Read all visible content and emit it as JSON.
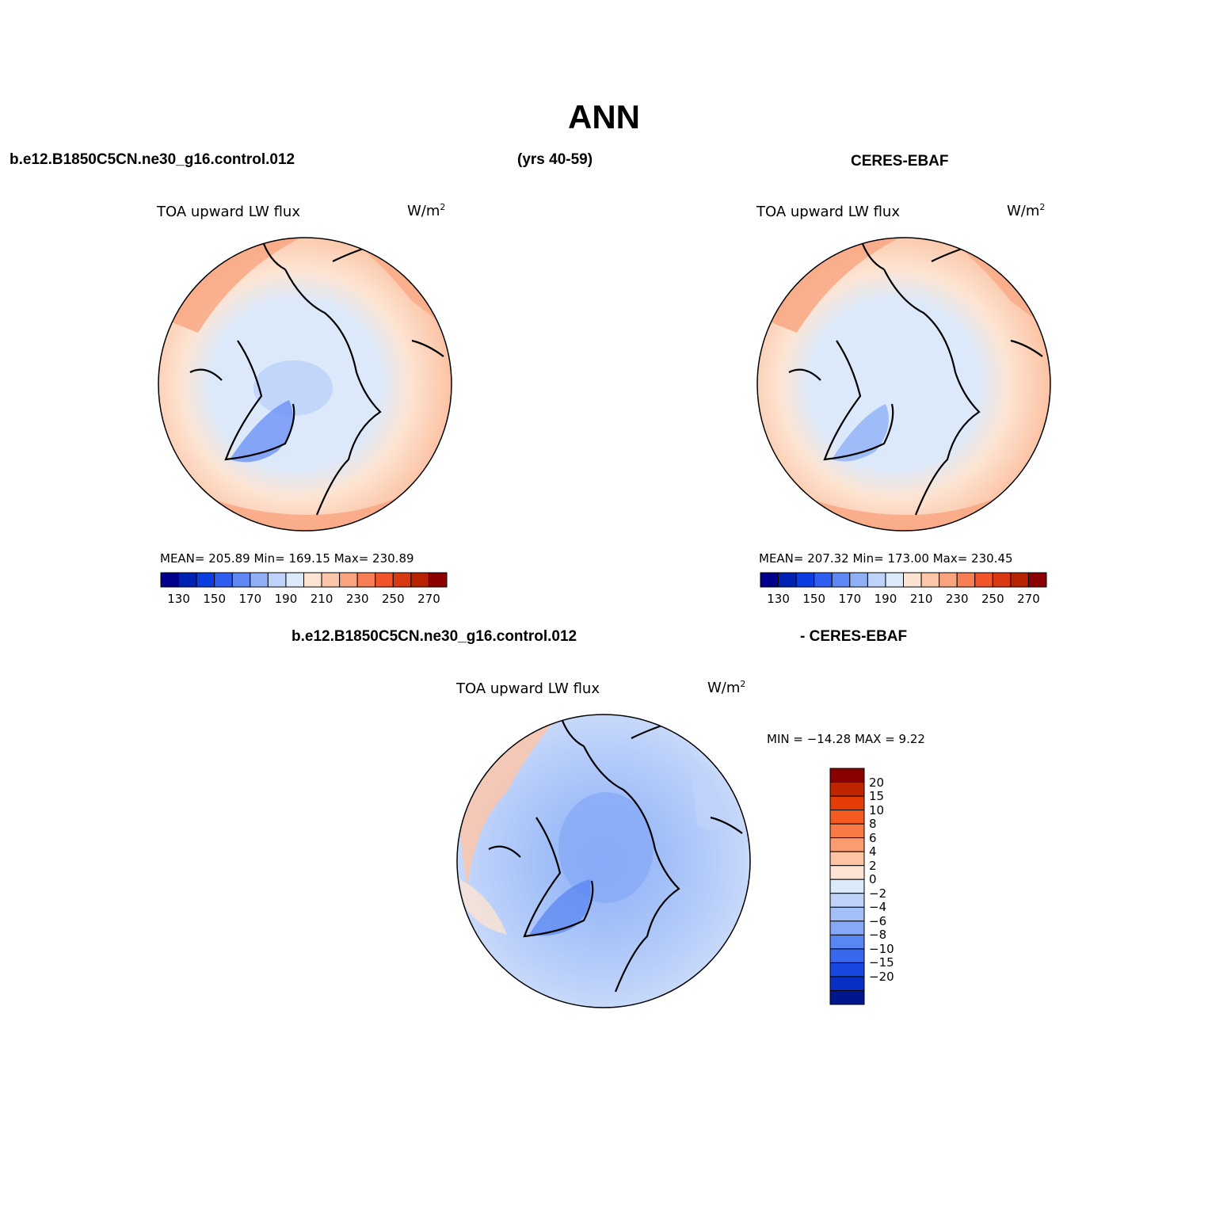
{
  "figure": {
    "title": "ANN",
    "top_left_case": "b.e12.B1850C5CN.ne30_g16.control.012",
    "top_years": "(yrs 40-59)",
    "top_right_case": "CERES-EBAF",
    "diff_case": "b.e12.B1850C5CN.ne30_g16.control.012",
    "diff_ref": "- CERES-EBAF"
  },
  "panels": [
    {
      "variable": "TOA upward LW flux",
      "units": "W/m",
      "units_sup": "2",
      "stats": "MEAN= 205.89   Min= 169.15   Max= 230.89",
      "mean": 205.89,
      "min": 169.15,
      "max": 230.89
    },
    {
      "variable": "TOA upward LW flux",
      "units": "W/m",
      "units_sup": "2",
      "stats": "MEAN= 207.32   Min= 173.00   Max= 230.45",
      "mean": 207.32,
      "min": 173.0,
      "max": 230.45
    },
    {
      "variable": "TOA upward LW flux",
      "units": "W/m",
      "units_sup": "2",
      "stats": "MIN = −14.28 MAX =    9.22",
      "min": -14.28,
      "max": 9.22
    }
  ],
  "colorbar_abs": {
    "colors": [
      "#00008b",
      "#0022b4",
      "#0a3ee0",
      "#2f5ff0",
      "#5f88f5",
      "#8fb0f7",
      "#bfd3fa",
      "#dbe9fb",
      "#fde4d2",
      "#fcc6a9",
      "#f9a47f",
      "#f77e55",
      "#f2542a",
      "#d93910",
      "#b72300",
      "#8b0000"
    ],
    "tick_labels": [
      "130",
      "150",
      "170",
      "190",
      "210",
      "230",
      "250",
      "270"
    ]
  },
  "colorbar_diff": {
    "colors": [
      "#8b0000",
      "#c02500",
      "#e43c05",
      "#f55a20",
      "#f97a45",
      "#fb9c70",
      "#fdc3a3",
      "#fde4d4",
      "#dbe9fb",
      "#bfd3fa",
      "#a3c0f8",
      "#86a9f7",
      "#5a86f3",
      "#3767ee",
      "#1847e2",
      "#0a2fc4",
      "#00168f"
    ],
    "tick_labels": [
      "20",
      "15",
      "10",
      "8",
      "6",
      "4",
      "2",
      "0",
      "−2",
      "−4",
      "−6",
      "−8",
      "−10",
      "−15",
      "−20"
    ]
  }
}
